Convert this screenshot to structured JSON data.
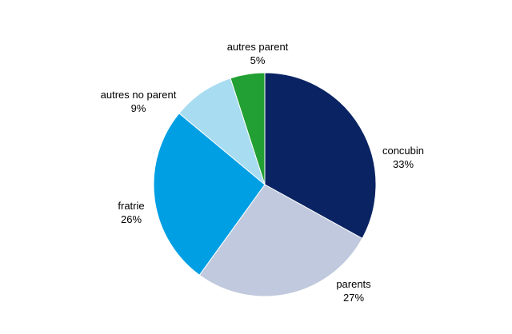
{
  "chart_data": {
    "type": "pie",
    "title": "",
    "slices": [
      {
        "label": "concubin",
        "value": 33,
        "display": "33%",
        "color": "#0a2463"
      },
      {
        "label": "parents",
        "value": 27,
        "display": "27%",
        "color": "#c0c9dd"
      },
      {
        "label": "fratrie",
        "value": 26,
        "display": "26%",
        "color": "#009fe3"
      },
      {
        "label": "autres no parent",
        "value": 9,
        "display": "9%",
        "color": "#a8dcf0"
      },
      {
        "label": "autres parent",
        "value": 5,
        "display": "5%",
        "color": "#22a033"
      }
    ],
    "start_angle_deg": 0,
    "direction": "clockwise",
    "legend": "none",
    "labels_position": "outside"
  }
}
